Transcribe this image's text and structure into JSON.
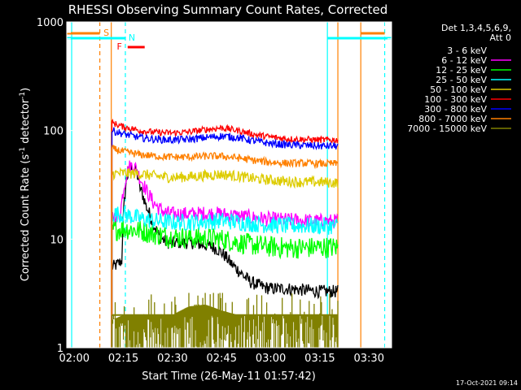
{
  "chart_data": {
    "type": "line",
    "title": "RHESSI Observing Summary Count Rates, Corrected",
    "xlabel": "Start Time (26-May-11 01:57:42)",
    "ylabel_main": "Corrected Count Rate (s",
    "ylabel_sup1": "-1",
    "ylabel_mid": " detector",
    "ylabel_sup2": "-1",
    "ylabel_end": ")",
    "footer": "17-Oct-2021 09:14",
    "y_scale": "log",
    "ylim": [
      1,
      1000
    ],
    "xlim_minutes": [
      117.7,
      216.9
    ],
    "x_ticks": [
      {
        "value": 120,
        "label": "02:00"
      },
      {
        "value": 135,
        "label": "02:15"
      },
      {
        "value": 150,
        "label": "02:30"
      },
      {
        "value": 165,
        "label": "02:45"
      },
      {
        "value": 180,
        "label": "03:00"
      },
      {
        "value": 195,
        "label": "03:15"
      },
      {
        "value": 210,
        "label": "03:30"
      }
    ],
    "y_ticks": [
      {
        "value": 1,
        "label": "1"
      },
      {
        "value": 10,
        "label": "10"
      },
      {
        "value": 100,
        "label": "100"
      },
      {
        "value": 1000,
        "label": "1000"
      }
    ],
    "legend": {
      "placement": "right",
      "header": [
        "Det 1,3,4,5,6,9,",
        "Att 0"
      ],
      "entries": [
        {
          "name": "3 - 6 keV",
          "color": "#000000"
        },
        {
          "name": "6 - 12 keV",
          "color": "#ff00ff"
        },
        {
          "name": "12 - 25 keV",
          "color": "#00ff00"
        },
        {
          "name": "25 - 50 keV",
          "color": "#00ffff"
        },
        {
          "name": "50 - 100 keV",
          "color": "#ddcc00"
        },
        {
          "name": "100 - 300 keV",
          "color": "#ff0000"
        },
        {
          "name": "300 - 800 keV",
          "color": "#0000ff"
        },
        {
          "name": "800 - 7000 keV",
          "color": "#ff8000"
        },
        {
          "name": "7000 - 15000 keV",
          "color": "#808000"
        }
      ]
    },
    "annotations": [
      {
        "label": "S",
        "color": "#ff8000",
        "x_start": 117.7,
        "x_end": 127.8
      },
      {
        "label": "N",
        "color": "#00ffff",
        "x_start": 117.7,
        "x_end": 135.6
      },
      {
        "label": "F",
        "color": "#ff0000",
        "x_start": 136.3,
        "x_end": 141.5
      },
      {
        "label": "",
        "color": "#00ffff",
        "x_start": 197.3,
        "x_end": 216.9
      },
      {
        "label": "",
        "color": "#ff8000",
        "x_start": 207.5,
        "x_end": 214.8
      }
    ],
    "vertical_lines": [
      {
        "x": 119.2,
        "color": "#00ffff",
        "style": "solid"
      },
      {
        "x": 127.8,
        "color": "#ff8000",
        "style": "dashed"
      },
      {
        "x": 131.3,
        "color": "#ff8000",
        "style": "solid"
      },
      {
        "x": 135.6,
        "color": "#00ffff",
        "style": "dashed"
      },
      {
        "x": 197.3,
        "color": "#00ffff",
        "style": "solid"
      },
      {
        "x": 200.5,
        "color": "#ff8000",
        "style": "solid"
      },
      {
        "x": 207.5,
        "color": "#ff8000",
        "style": "solid"
      },
      {
        "x": 214.8,
        "color": "#00ffff",
        "style": "dashed"
      }
    ],
    "series": [
      {
        "name": "3 - 6 keV",
        "color": "#000000",
        "x": [
          131.5,
          133,
          134.5,
          136,
          137,
          138,
          139,
          140,
          142,
          144,
          146,
          148,
          150,
          152,
          154,
          156,
          158,
          160,
          162,
          164,
          166,
          168,
          170,
          172,
          174,
          176,
          178,
          180,
          185,
          190,
          195,
          200.5
        ],
        "y": [
          5.5,
          5.8,
          6.3,
          36,
          44,
          46,
          42,
          30,
          20,
          14,
          10.5,
          9.4,
          9.2,
          9.3,
          9.3,
          9.3,
          9.0,
          8.8,
          8.5,
          8.0,
          7.0,
          5.9,
          5.2,
          4.5,
          4.0,
          3.8,
          3.6,
          3.5,
          3.5,
          3.4,
          3.3,
          3.3
        ]
      },
      {
        "name": "6 - 12 keV",
        "color": "#ff00ff",
        "x": [
          131.5,
          134,
          136,
          137,
          138,
          139,
          140,
          142,
          144,
          146,
          148,
          150,
          155,
          160,
          165,
          170,
          175,
          180,
          185,
          190,
          195,
          200.5
        ],
        "y": [
          16,
          16.5,
          40,
          47,
          48,
          44,
          37,
          28,
          22,
          19,
          17.5,
          17,
          17,
          17.2,
          17,
          16.3,
          15.7,
          15.2,
          15,
          14.8,
          14.6,
          14.6
        ]
      },
      {
        "name": "12 - 25 keV",
        "color": "#00ff00",
        "x": [
          131.5,
          135,
          140,
          145,
          150,
          155,
          160,
          165,
          170,
          175,
          180,
          185,
          190,
          195,
          200.5
        ],
        "y": [
          12,
          12.5,
          12,
          11,
          10.5,
          10.3,
          10.2,
          10,
          9.3,
          8.8,
          8.5,
          8.3,
          8.3,
          8.4,
          8.4
        ]
      },
      {
        "name": "25 - 50 keV",
        "color": "#00ffff",
        "x": [
          131.5,
          135,
          140,
          145,
          150,
          155,
          160,
          165,
          170,
          175,
          180,
          185,
          190,
          195,
          200.5
        ],
        "y": [
          17,
          17,
          15.5,
          14.7,
          14.3,
          14.3,
          14.5,
          14.8,
          14.4,
          13.8,
          13.5,
          13.3,
          13.3,
          13.2,
          13.2
        ]
      },
      {
        "name": "50 - 100 keV",
        "color": "#ddcc00",
        "x": [
          131.5,
          135,
          140,
          145,
          150,
          155,
          160,
          165,
          170,
          175,
          180,
          185,
          190,
          195,
          200.5
        ],
        "y": [
          40,
          40.5,
          40,
          38,
          37,
          37.5,
          38.5,
          39.5,
          38,
          36,
          35,
          34,
          33.5,
          33.5,
          33
        ]
      },
      {
        "name": "100 - 300 keV",
        "color": "#ff0000",
        "x": [
          131.5,
          135,
          140,
          145,
          150,
          155,
          160,
          165,
          170,
          175,
          180,
          185,
          190,
          195,
          200.5
        ],
        "y": [
          118,
          108,
          100,
          96,
          95,
          97,
          102,
          106,
          100,
          92,
          87,
          84,
          83,
          82,
          82
        ]
      },
      {
        "name": "300 - 800 keV",
        "color": "#0000ff",
        "x": [
          131.5,
          135,
          140,
          145,
          150,
          155,
          160,
          165,
          170,
          175,
          180,
          185,
          190,
          195,
          200.5
        ],
        "y": [
          100,
          93,
          86,
          83,
          82,
          83,
          86,
          89,
          86,
          80,
          76,
          74,
          73,
          72,
          72
        ]
      },
      {
        "name": "800 - 7000 keV",
        "color": "#ff8000",
        "x": [
          131.5,
          135,
          140,
          145,
          150,
          155,
          160,
          165,
          170,
          175,
          180,
          185,
          190,
          195,
          200.5
        ],
        "y": [
          68,
          64,
          60,
          58,
          57,
          57,
          58,
          58,
          56,
          53,
          51,
          50,
          50,
          49.5,
          49.5
        ]
      },
      {
        "name": "7000 - 15000 keV",
        "color": "#808000",
        "x": [
          131.5,
          135,
          140,
          145,
          150,
          155,
          160,
          165,
          170,
          175,
          180,
          185,
          190,
          195,
          200.5
        ],
        "y": [
          1.8,
          2.0,
          2.0,
          2.0,
          2.0,
          2.4,
          2.5,
          2.2,
          2.0,
          2.0,
          2.0,
          2.0,
          2.0,
          2.0,
          2.0
        ]
      }
    ]
  }
}
